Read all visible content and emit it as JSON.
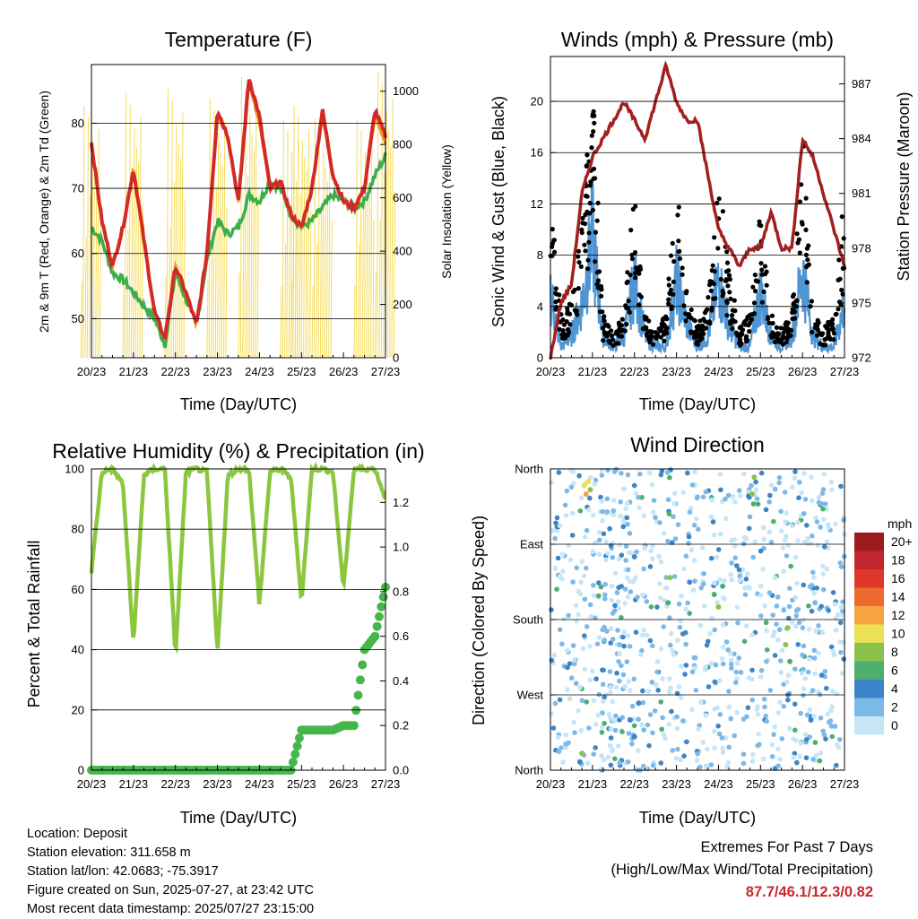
{
  "x_ticks": [
    "20/23",
    "21/23",
    "22/23",
    "23/23",
    "24/23",
    "25/23",
    "26/23",
    "27/23"
  ],
  "colors": {
    "temp2m": "#d42a25",
    "temp9m": "#f59a23",
    "dewpoint": "#3fae48",
    "solar": "#f6dc57",
    "wind": "#4f95d3",
    "gust": "#000000",
    "pressure": "#a11f1f",
    "rh": "#8cc63f",
    "precip": "#45b649",
    "extremes": "#c8272d"
  },
  "temperature": {
    "title": "Temperature (F)",
    "xlabel": "Time (Day/UTC)",
    "ylabel_left": "2m & 9m T (Red, Orange) & 2m Td (Green)",
    "ylabel_right": "Solar Insolation (Yellow)",
    "left_ticks": [
      "50",
      "60",
      "70",
      "80"
    ],
    "right_ticks": [
      "0",
      "200",
      "400",
      "600",
      "800",
      "1000"
    ]
  },
  "winds": {
    "title": "Winds (mph) & Pressure (mb)",
    "xlabel": "Time (Day/UTC)",
    "ylabel_left": "Sonic Wind & Gust (Blue, Black)",
    "ylabel_right": "Station Pressure (Maroon)",
    "left_ticks": [
      "0",
      "4",
      "8",
      "12",
      "16",
      "20"
    ],
    "right_ticks": [
      "972",
      "975",
      "978",
      "981",
      "984",
      "987"
    ]
  },
  "humidity": {
    "title": "Relative Humidity (%) & Precipitation (in)",
    "xlabel": "Time (Day/UTC)",
    "ylabel_left": "Percent & Total Rainfall",
    "left_ticks": [
      "0",
      "20",
      "40",
      "60",
      "80",
      "100"
    ],
    "right_ticks": [
      "0.0",
      "0.2",
      "0.4",
      "0.6",
      "0.8",
      "1.0",
      "1.2"
    ]
  },
  "direction": {
    "title": "Wind Direction",
    "xlabel": "Time (Day/UTC)",
    "ylabel_left": "Direction (Colored By Speed)",
    "dir_ticks": [
      "North",
      "West",
      "South",
      "East",
      "North"
    ],
    "colorbar_title": "mph",
    "colorbar_labels": [
      "20+",
      "18",
      "16",
      "14",
      "12",
      "10",
      "8",
      "6",
      "4",
      "2",
      "0"
    ],
    "colorbar_colors": [
      "#9b1b1e",
      "#c0272d",
      "#e0362b",
      "#ee6a2f",
      "#f7a541",
      "#e9e254",
      "#8bc34a",
      "#4caf6e",
      "#3d85c6",
      "#7db9e8",
      "#c6e5f7"
    ]
  },
  "info": {
    "location": "Location: Deposit",
    "elevation": "Station elevation: 311.658 m",
    "latlon": "Station lat/lon: 42.0683; -75.3917",
    "created": "Figure created on Sun, 2025-07-27, at 23:42 UTC",
    "latest": "Most recent data timestamp: 2025/07/27 23:15:00"
  },
  "extremes": {
    "title": "Extremes For Past 7 Days",
    "subtitle": "(High/Low/Max Wind/Total Precipitation)",
    "values": "87.7/46.1/12.3/0.82"
  },
  "chart_data": [
    {
      "type": "line",
      "title": "Temperature (F)",
      "xlabel": "Time (Day/UTC)",
      "ylabel": "2m & 9m T (Red, Orange) & 2m Td (Green)",
      "ylabel_right": "Solar Insolation (Yellow)",
      "x": [
        0,
        0.25,
        0.5,
        0.75,
        1,
        1.25,
        1.5,
        1.75,
        2,
        2.25,
        2.5,
        2.75,
        3,
        3.25,
        3.5,
        3.75,
        4,
        4.25,
        4.5,
        4.75,
        5,
        5.25,
        5.5,
        5.75,
        6,
        6.25,
        6.5,
        6.75,
        7
      ],
      "x_ticks": [
        "20/23",
        "21/23",
        "22/23",
        "23/23",
        "24/23",
        "25/23",
        "26/23",
        "27/23"
      ],
      "ylim": [
        44,
        89
      ],
      "ylim_right": [
        0,
        1100
      ],
      "series": [
        {
          "name": "2m T",
          "axis": "left",
          "values": [
            77,
            65,
            58,
            64,
            73,
            62,
            51,
            47,
            58,
            54,
            49,
            60,
            82,
            78,
            68,
            87,
            81,
            70,
            71,
            66,
            64,
            70,
            82,
            72,
            68,
            67,
            70,
            82,
            78
          ]
        },
        {
          "name": "9m T",
          "axis": "left",
          "values": [
            77,
            65,
            58,
            64,
            73,
            62,
            51,
            47,
            58,
            54,
            49,
            60,
            81,
            78,
            68,
            86,
            80,
            70,
            71,
            66,
            64,
            70,
            81,
            72,
            68,
            67,
            70,
            81,
            77
          ]
        },
        {
          "name": "2m Td",
          "axis": "left",
          "values": [
            64,
            62,
            57,
            56,
            54,
            52,
            50,
            46,
            57,
            53,
            49,
            59,
            65,
            63,
            64,
            69,
            68,
            71,
            70,
            66,
            64,
            65,
            67,
            69,
            68,
            67,
            68,
            72,
            75
          ]
        },
        {
          "name": "Solar Insolation",
          "axis": "right",
          "values": [
            950,
            0,
            0,
            30,
            1000,
            0,
            0,
            0,
            1020,
            0,
            0,
            0,
            980,
            0,
            0,
            1060,
            0,
            0,
            0,
            900,
            950,
            0,
            900,
            0,
            0,
            0,
            900,
            0,
            1080
          ]
        }
      ]
    },
    {
      "type": "line",
      "title": "Winds (mph) & Pressure (mb)",
      "xlabel": "Time (Day/UTC)",
      "ylabel": "Sonic Wind & Gust (Blue, Black)",
      "ylabel_right": "Station Pressure (Maroon)",
      "x": [
        0,
        0.25,
        0.5,
        0.75,
        1,
        1.25,
        1.5,
        1.75,
        2,
        2.25,
        2.5,
        2.75,
        3,
        3.25,
        3.5,
        3.75,
        4,
        4.25,
        4.5,
        4.75,
        5,
        5.25,
        5.5,
        5.75,
        6,
        6.25,
        6.5,
        6.75,
        7
      ],
      "x_ticks": [
        "20/23",
        "21/23",
        "22/23",
        "23/23",
        "24/23",
        "25/23",
        "26/23",
        "27/23"
      ],
      "ylim": [
        0,
        23.5
      ],
      "ylim_right": [
        972,
        988.5
      ],
      "series": [
        {
          "name": "Sonic Wind",
          "axis": "left",
          "values": [
            6,
            1,
            2,
            5,
            11,
            2,
            1,
            2,
            7,
            2,
            1,
            1,
            7,
            3,
            1,
            2,
            7,
            3,
            1,
            1,
            6,
            2,
            1,
            2,
            8,
            2,
            1,
            1,
            5
          ]
        },
        {
          "name": "Gust",
          "axis": "left",
          "values": [
            12,
            3,
            4,
            9,
            20,
            3,
            2,
            3,
            12,
            3,
            2,
            3,
            12,
            5,
            2,
            4,
            13,
            6,
            2,
            3,
            10,
            3,
            2,
            3,
            16,
            3,
            2,
            3,
            12
          ]
        },
        {
          "name": "Station Pressure",
          "axis": "right",
          "values": [
            972,
            975,
            976,
            981,
            983,
            984,
            985,
            986,
            985,
            984,
            986,
            988,
            986,
            985,
            985,
            982,
            979,
            978,
            977,
            978,
            978,
            980,
            978,
            978,
            984,
            983,
            981,
            979,
            977
          ]
        }
      ]
    },
    {
      "type": "line",
      "title": "Relative Humidity (%) & Precipitation (in)",
      "xlabel": "Time (Day/UTC)",
      "ylabel": "Percent & Total Rainfall",
      "x": [
        0,
        0.25,
        0.5,
        0.75,
        1,
        1.25,
        1.5,
        1.75,
        2,
        2.25,
        2.5,
        2.75,
        3,
        3.25,
        3.5,
        3.75,
        4,
        4.25,
        4.5,
        4.75,
        5,
        5.25,
        5.5,
        5.75,
        6,
        6.25,
        6.5,
        6.75,
        7
      ],
      "x_ticks": [
        "20/23",
        "21/23",
        "22/23",
        "23/23",
        "24/23",
        "25/23",
        "26/23",
        "27/23"
      ],
      "ylim": [
        0,
        100
      ],
      "ylim_right": [
        0,
        1.35
      ],
      "series": [
        {
          "name": "Relative Humidity",
          "axis": "left",
          "values": [
            66,
            99,
            100,
            95,
            42,
            98,
            100,
            100,
            38,
            99,
            100,
            99,
            39,
            98,
            100,
            100,
            55,
            99,
            100,
            97,
            56,
            100,
            100,
            99,
            60,
            100,
            100,
            100,
            90
          ]
        },
        {
          "name": "Total Precipitation",
          "axis": "right",
          "values": [
            0,
            0,
            0,
            0,
            0,
            0,
            0,
            0,
            0,
            0,
            0,
            0,
            0,
            0,
            0,
            0,
            0,
            0,
            0,
            0,
            0.18,
            0.18,
            0.18,
            0.18,
            0.2,
            0.2,
            0.54,
            0.6,
            0.82
          ]
        }
      ]
    },
    {
      "type": "scatter",
      "title": "Wind Direction",
      "xlabel": "Time (Day/UTC)",
      "ylabel": "Direction (Colored By Speed)",
      "x_ticks": [
        "20/23",
        "21/23",
        "22/23",
        "23/23",
        "24/23",
        "25/23",
        "26/23",
        "27/23"
      ],
      "y_ticks": [
        "North",
        "West",
        "South",
        "East",
        "North"
      ],
      "ylim": [
        0,
        360
      ],
      "colorbar": {
        "title": "mph",
        "levels": [
          0,
          2,
          4,
          6,
          8,
          10,
          12,
          14,
          16,
          18,
          20
        ]
      },
      "series": [
        {
          "name": "direction",
          "points": [
            [
              0.8,
              340,
              10
            ],
            [
              0.85,
              330,
              11
            ],
            [
              0.9,
              345,
              9
            ],
            [
              0.95,
              335,
              8
            ],
            [
              2.0,
              255,
              4
            ],
            [
              2.8,
              200,
              6
            ],
            [
              2.85,
              230,
              7
            ],
            [
              3.9,
              210,
              6
            ],
            [
              4.0,
              195,
              7
            ],
            [
              4.1,
              220,
              5
            ],
            [
              4.8,
              330,
              7
            ],
            [
              4.85,
              350,
              8
            ],
            [
              5.6,
              150,
              8
            ],
            [
              5.65,
              170,
              7
            ],
            [
              5.7,
              130,
              6
            ],
            [
              6.2,
              60,
              3
            ],
            [
              6.3,
              200,
              2
            ],
            [
              1.9,
              60,
              3
            ],
            [
              2.0,
              40,
              4
            ],
            [
              2.1,
              80,
              4
            ],
            [
              0.7,
              10,
              3
            ],
            [
              0.75,
              20,
              7
            ]
          ]
        }
      ]
    }
  ]
}
